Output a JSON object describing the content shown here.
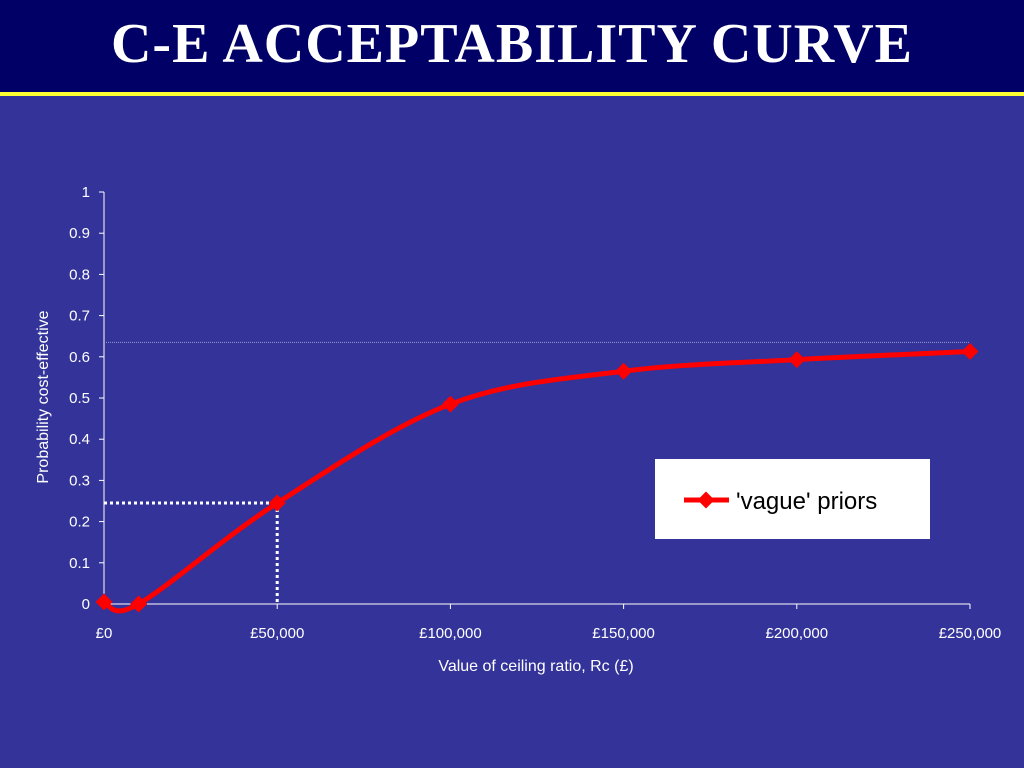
{
  "slide": {
    "title": "C-E ACCEPTABILITY CURVE",
    "colors": {
      "background": "#333399",
      "title_bar": "#000066",
      "title_rule": "#ffff33"
    }
  },
  "chart_data": {
    "type": "line",
    "title": "",
    "xlabel": "Value of ceiling ratio, Rc (£)",
    "ylabel": "Probability cost-effective",
    "x_ticks": [
      "£0",
      "£50,000",
      "£100,000",
      "£150,000",
      "£200,000",
      "£250,000"
    ],
    "y_ticks": [
      "0",
      "0.1",
      "0.2",
      "0.3",
      "0.4",
      "0.5",
      "0.6",
      "0.7",
      "0.8",
      "0.9",
      "1"
    ],
    "xlim": [
      0,
      250000
    ],
    "ylim": [
      0,
      1
    ],
    "grid": false,
    "legend_position": "right",
    "series": [
      {
        "name": "'vague' priors",
        "color": "#ff0000",
        "marker": "diamond",
        "x": [
          0,
          10000,
          50000,
          100000,
          150000,
          200000,
          250000
        ],
        "y": [
          0.005,
          0.0,
          0.245,
          0.485,
          0.565,
          0.593,
          0.613
        ]
      }
    ],
    "annotations": {
      "dotted_marker": {
        "x": 50000,
        "y": 0.245,
        "color": "#ffffff"
      },
      "reference_line": {
        "y": 0.635,
        "color": "#9999cc"
      }
    }
  }
}
